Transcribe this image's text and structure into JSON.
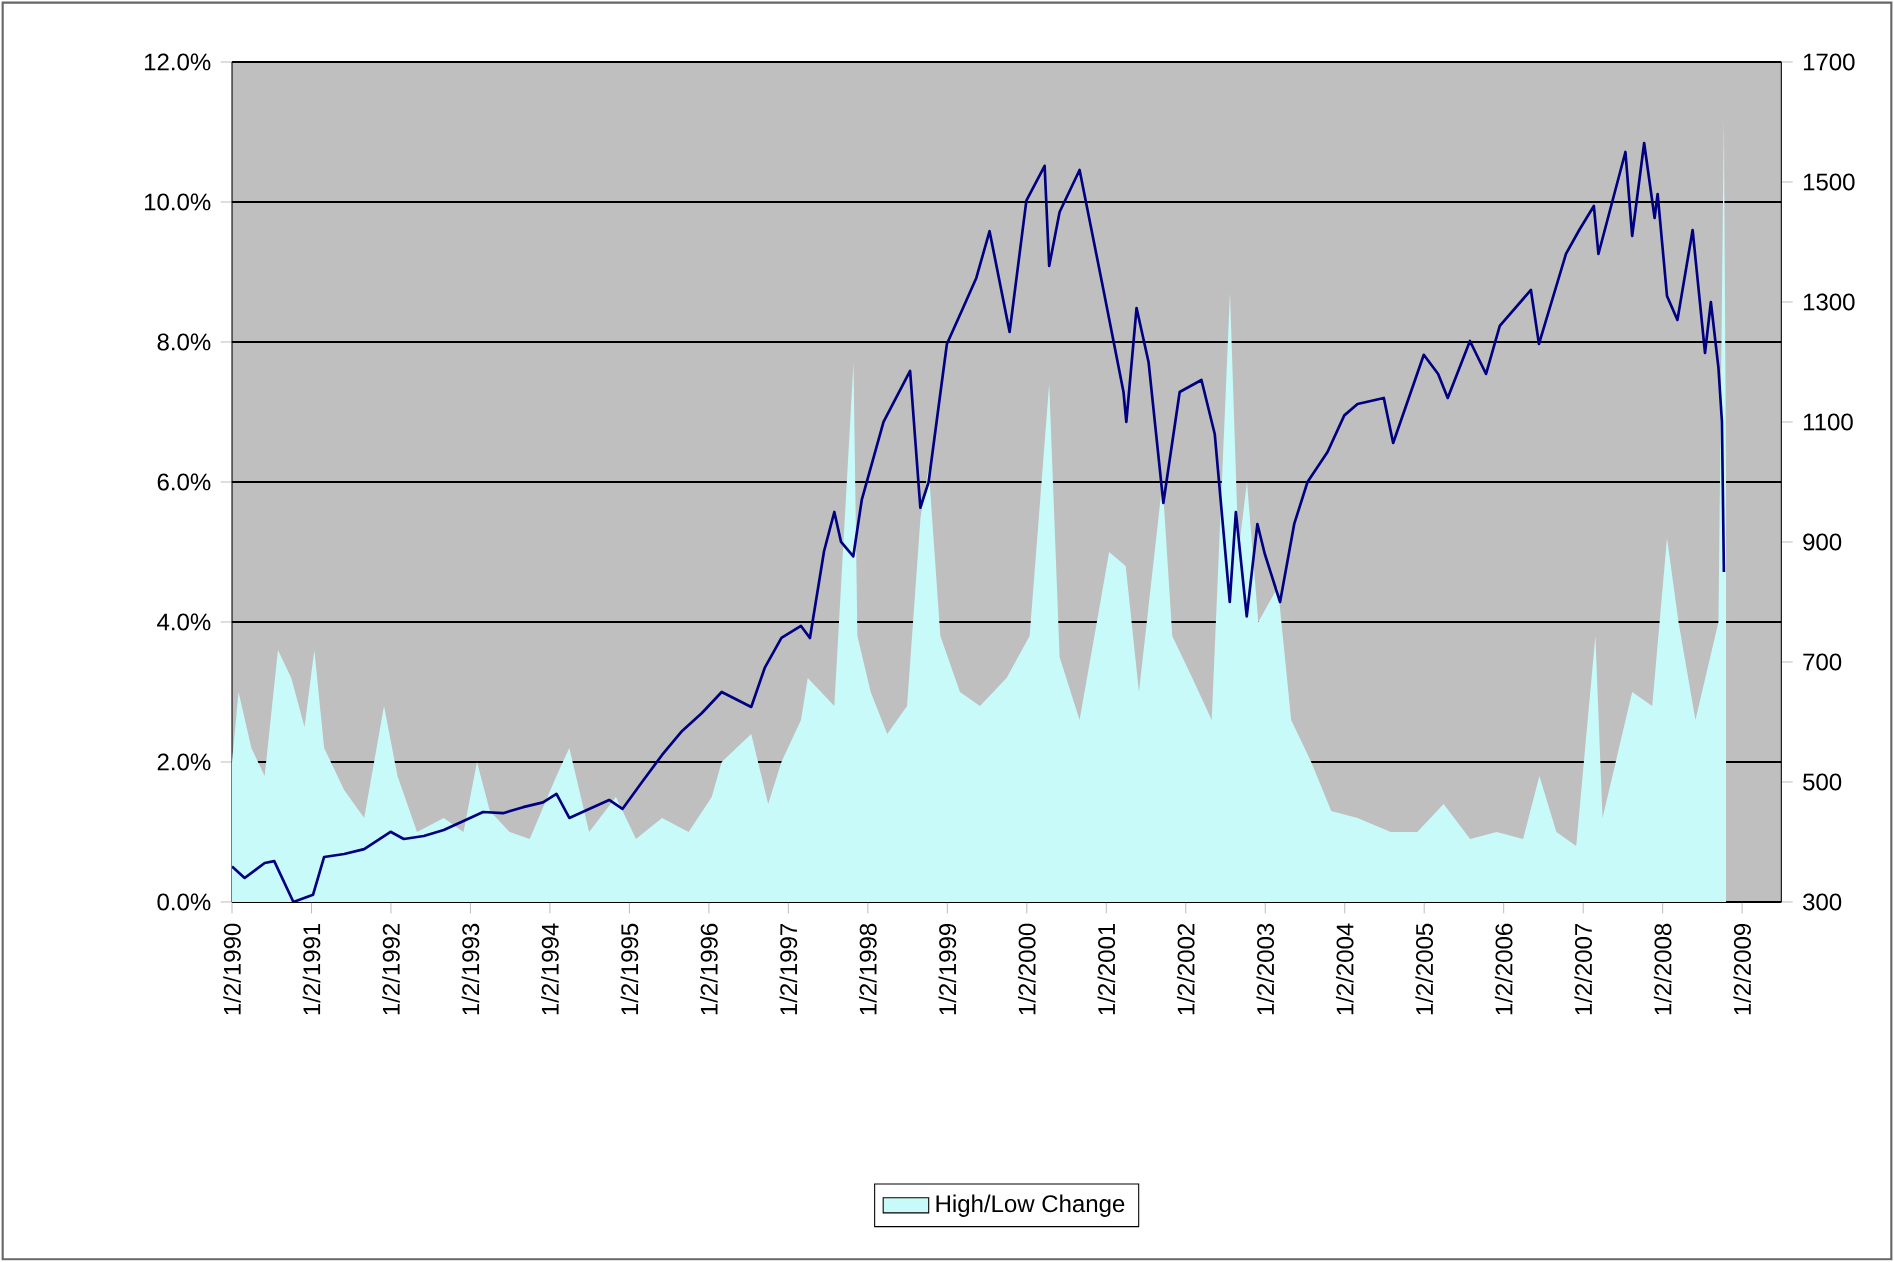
{
  "chart_data": {
    "type": "area",
    "xlim": [
      "1990-01-02",
      "2009-07-01"
    ],
    "xticks": [
      {
        "value": "1990-01-02",
        "label": "1/2/1990"
      },
      {
        "value": "1991-01-02",
        "label": "1/2/1991"
      },
      {
        "value": "1992-01-02",
        "label": "1/2/1992"
      },
      {
        "value": "1993-01-02",
        "label": "1/2/1993"
      },
      {
        "value": "1994-01-02",
        "label": "1/2/1994"
      },
      {
        "value": "1995-01-02",
        "label": "1/2/1995"
      },
      {
        "value": "1996-01-02",
        "label": "1/2/1996"
      },
      {
        "value": "1997-01-02",
        "label": "1/2/1997"
      },
      {
        "value": "1998-01-02",
        "label": "1/2/1998"
      },
      {
        "value": "1999-01-02",
        "label": "1/2/1999"
      },
      {
        "value": "2000-01-02",
        "label": "1/2/2000"
      },
      {
        "value": "2001-01-02",
        "label": "1/2/2001"
      },
      {
        "value": "2002-01-02",
        "label": "1/2/2002"
      },
      {
        "value": "2003-01-02",
        "label": "1/2/2003"
      },
      {
        "value": "2004-01-02",
        "label": "1/2/2004"
      },
      {
        "value": "2005-01-02",
        "label": "1/2/2005"
      },
      {
        "value": "2006-01-02",
        "label": "1/2/2006"
      },
      {
        "value": "2007-01-02",
        "label": "1/2/2007"
      },
      {
        "value": "2008-01-02",
        "label": "1/2/2008"
      },
      {
        "value": "2009-01-02",
        "label": "1/2/2009"
      }
    ],
    "ylim": [
      0,
      12
    ],
    "yticks": [
      {
        "value": 0,
        "label": "0.0%"
      },
      {
        "value": 2,
        "label": "2.0%"
      },
      {
        "value": 4,
        "label": "4.0%"
      },
      {
        "value": 6,
        "label": "6.0%"
      },
      {
        "value": 8,
        "label": "8.0%"
      },
      {
        "value": 10,
        "label": "10.0%"
      },
      {
        "value": 12,
        "label": "12.0%"
      }
    ],
    "y2lim": [
      300,
      1700
    ],
    "y2ticks": [
      300,
      500,
      700,
      900,
      1100,
      1300,
      1500,
      1700
    ],
    "grid": "y",
    "legend": "bottom",
    "series": [
      {
        "name": "High/Low Change",
        "color": "#c8fafa",
        "x": [
          "1990-01-02",
          "1990-02-01",
          "1990-04-01",
          "1990-06-01",
          "1990-08-01",
          "1990-10-01",
          "1990-12-01",
          "1991-01-15",
          "1991-03-01",
          "1991-06-01",
          "1991-09-01",
          "1991-12-01",
          "1992-02-01",
          "1992-05-01",
          "1992-09-01",
          "1992-12-01",
          "1993-02-01",
          "1993-04-01",
          "1993-07-01",
          "1993-10-01",
          "1994-02-01",
          "1994-04-01",
          "1994-07-01",
          "1994-11-01",
          "1995-02-01",
          "1995-06-01",
          "1995-10-01",
          "1996-01-15",
          "1996-03-01",
          "1996-07-15",
          "1996-10-01",
          "1996-12-01",
          "1997-03-01",
          "1997-04-01",
          "1997-08-01",
          "1997-10-28",
          "1997-11-15",
          "1998-01-15",
          "1998-04-01",
          "1998-07-01",
          "1998-09-01",
          "1998-10-08",
          "1998-12-01",
          "1999-03-01",
          "1999-06-01",
          "1999-10-01",
          "2000-01-15",
          "2000-04-14",
          "2000-06-01",
          "2000-09-01",
          "2000-12-01",
          "2001-01-15",
          "2001-04-01",
          "2001-06-01",
          "2001-09-17",
          "2001-11-01",
          "2002-02-01",
          "2002-05-01",
          "2002-07-24",
          "2002-09-01",
          "2002-10-10",
          "2002-12-01",
          "2003-03-01",
          "2003-05-01",
          "2003-08-01",
          "2003-11-01",
          "2004-03-01",
          "2004-08-01",
          "2004-12-01",
          "2005-04-01",
          "2005-08-01",
          "2005-12-01",
          "2006-04-01",
          "2006-06-15",
          "2006-09-01",
          "2006-12-01",
          "2007-02-27",
          "2007-04-01",
          "2007-08-15",
          "2007-11-15",
          "2008-01-22",
          "2008-03-15",
          "2008-06-01",
          "2008-09-15",
          "2008-10-10",
          "2008-10-20"
        ],
        "values": [
          2.0,
          3.0,
          2.2,
          1.8,
          3.6,
          3.2,
          2.5,
          3.6,
          2.2,
          1.6,
          1.2,
          2.8,
          1.8,
          1.0,
          1.2,
          1.0,
          2.0,
          1.3,
          1.0,
          0.9,
          1.8,
          2.2,
          1.0,
          1.5,
          0.9,
          1.2,
          1.0,
          1.5,
          2.0,
          2.4,
          1.4,
          2.0,
          2.6,
          3.2,
          2.8,
          7.7,
          3.8,
          3.0,
          2.4,
          2.8,
          5.5,
          6.2,
          3.8,
          3.0,
          2.8,
          3.2,
          3.8,
          7.4,
          3.5,
          2.6,
          4.2,
          5.0,
          4.8,
          3.0,
          6.0,
          3.8,
          3.2,
          2.6,
          8.7,
          5.0,
          6.0,
          4.0,
          4.5,
          2.6,
          2.0,
          1.3,
          1.2,
          1.0,
          1.0,
          1.4,
          0.9,
          1.0,
          0.9,
          1.8,
          1.0,
          0.8,
          3.8,
          1.2,
          3.0,
          2.8,
          5.2,
          4.0,
          2.6,
          4.0,
          11.2,
          6.0
        ]
      },
      {
        "type": "line",
        "axis": "y2",
        "color": "#000080",
        "x": [
          "1990-01-02",
          "1990-03-01",
          "1990-06-01",
          "1990-07-15",
          "1990-10-11",
          "1991-01-09",
          "1991-03-01",
          "1991-06-01",
          "1991-09-01",
          "1991-12-31",
          "1992-03-01",
          "1992-06-01",
          "1992-09-01",
          "1992-12-01",
          "1993-03-01",
          "1993-06-01",
          "1993-09-01",
          "1993-12-01",
          "1994-02-01",
          "1994-04-01",
          "1994-07-01",
          "1994-10-01",
          "1994-12-01",
          "1995-03-01",
          "1995-06-01",
          "1995-09-01",
          "1995-12-01",
          "1996-03-01",
          "1996-07-15",
          "1996-09-15",
          "1996-12-01",
          "1997-03-01",
          "1997-04-11",
          "1997-06-15",
          "1997-08-01",
          "1997-09-01",
          "1997-10-27",
          "1997-12-05",
          "1998-03-15",
          "1998-07-15",
          "1998-08-31",
          "1998-10-08",
          "1998-12-31",
          "1999-03-15",
          "1999-05-15",
          "1999-07-15",
          "1999-10-15",
          "1999-12-31",
          "2000-03-24",
          "2000-04-14",
          "2000-06-01",
          "2000-09-01",
          "2000-12-20",
          "2001-03-22",
          "2001-04-04",
          "2001-05-21",
          "2001-07-15",
          "2001-09-21",
          "2001-12-05",
          "2002-03-15",
          "2002-05-15",
          "2002-07-23",
          "2002-08-20",
          "2002-10-09",
          "2002-11-27",
          "2002-12-31",
          "2003-03-11",
          "2003-05-15",
          "2003-07-15",
          "2003-10-15",
          "2003-12-31",
          "2004-03-01",
          "2004-06-30",
          "2004-08-12",
          "2004-12-31",
          "2005-03-07",
          "2005-04-20",
          "2005-07-31",
          "2005-10-13",
          "2005-12-15",
          "2006-05-07",
          "2006-06-13",
          "2006-10-15",
          "2006-12-15",
          "2007-02-20",
          "2007-03-13",
          "2007-07-15",
          "2007-08-15",
          "2007-10-09",
          "2007-11-26",
          "2007-12-10",
          "2008-01-22",
          "2008-03-10",
          "2008-05-19",
          "2008-07-15",
          "2008-08-11",
          "2008-09-15",
          "2008-10-01",
          "2008-10-10"
        ],
        "values": [
          359,
          340,
          365,
          368,
          300,
          312,
          375,
          380,
          388,
          417,
          405,
          410,
          420,
          435,
          450,
          448,
          458,
          466,
          480,
          440,
          455,
          470,
          455,
          500,
          545,
          585,
          615,
          650,
          625,
          690,
          740,
          760,
          740,
          885,
          950,
          900,
          876,
          970,
          1100,
          1185,
          957,
          1000,
          1230,
          1290,
          1340,
          1418,
          1250,
          1469,
          1527,
          1360,
          1450,
          1520,
          1320,
          1150,
          1100,
          1290,
          1200,
          965,
          1150,
          1170,
          1080,
          800,
          950,
          776,
          930,
          880,
          800,
          930,
          1000,
          1050,
          1111,
          1130,
          1140,
          1065,
          1212,
          1180,
          1140,
          1235,
          1180,
          1260,
          1320,
          1230,
          1380,
          1420,
          1460,
          1380,
          1550,
          1410,
          1565,
          1440,
          1480,
          1310,
          1270,
          1420,
          1215,
          1300,
          1190,
          1100,
          850
        ]
      }
    ]
  }
}
